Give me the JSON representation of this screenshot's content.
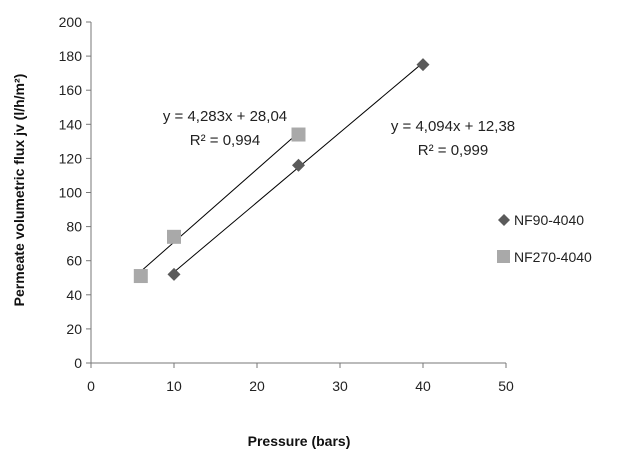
{
  "chart_data": {
    "type": "scatter",
    "xlabel": "Pressure (bars)",
    "ylabel": "Permeate volumetric  flux jv (l/h/m²)",
    "xlim": [
      0,
      50
    ],
    "ylim": [
      0,
      200
    ],
    "x_ticks": [
      "0",
      "10",
      "20",
      "30",
      "40",
      "50"
    ],
    "y_ticks": [
      "0",
      "20",
      "40",
      "60",
      "80",
      "100",
      "120",
      "140",
      "160",
      "180",
      "200"
    ],
    "grid": false,
    "legend_position": "right",
    "series": [
      {
        "name": "NF90-4040",
        "marker": "diamond",
        "color": "#5a5a5a",
        "points": [
          {
            "x": 10,
            "y": 52
          },
          {
            "x": 25,
            "y": 116
          },
          {
            "x": 40,
            "y": 175
          }
        ],
        "trendline": {
          "slope": 4.094,
          "intercept": 12.38,
          "x_range": [
            10,
            40
          ]
        },
        "equation": "y = 4,094x + 12,38",
        "r2": "R² = 0,999"
      },
      {
        "name": "NF270-4040",
        "marker": "square",
        "color": "#a9a9a9",
        "points": [
          {
            "x": 6,
            "y": 51
          },
          {
            "x": 10,
            "y": 74
          },
          {
            "x": 25,
            "y": 134
          }
        ],
        "trendline": {
          "slope": 4.283,
          "intercept": 28.04,
          "x_range": [
            6,
            25
          ]
        },
        "equation": "y = 4,283x + 28,04",
        "r2": "R² = 0,994"
      }
    ]
  }
}
